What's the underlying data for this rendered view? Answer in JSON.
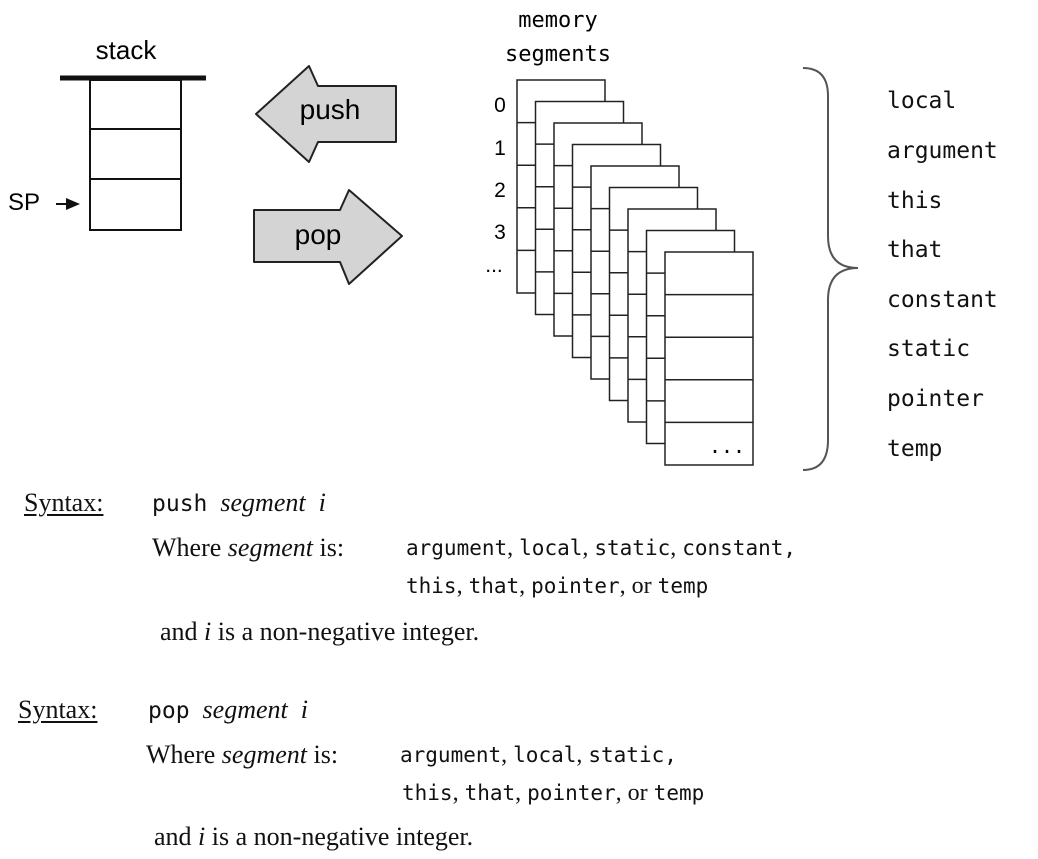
{
  "diagram": {
    "stack_label": "stack",
    "sp_label": "SP",
    "push_label": "push",
    "pop_label": "pop",
    "memory_label_line1": "memory",
    "memory_label_line2": "segments",
    "segment_indices": [
      "0",
      "1",
      "2",
      "3",
      "..."
    ],
    "last_cell_label": "...",
    "segment_names": [
      "local",
      "argument",
      "this",
      "that",
      "constant",
      "static",
      "pointer",
      "temp"
    ]
  },
  "syntax_push": {
    "label": "Syntax:",
    "command": "push",
    "segment_word": "segment",
    "index_word": "i",
    "where_prefix": "Where",
    "where_segment": "segment",
    "where_suffix": "is:",
    "line1_items": [
      "argument",
      "local",
      "static",
      "constant,"
    ],
    "line2_items": [
      "this",
      "that",
      "pointer"
    ],
    "line2_or": "or",
    "line2_last": "temp",
    "and_prefix": "and",
    "and_i": "i",
    "and_suffix": "is a non-negative  integer."
  },
  "syntax_pop": {
    "label": "Syntax:",
    "command": "pop",
    "segment_word": "segment",
    "index_word": "i",
    "where_prefix": "Where",
    "where_segment": "segment",
    "where_suffix": "is:",
    "line1_items": [
      "argument",
      "local",
      "static,"
    ],
    "line2_items": [
      "this",
      "that",
      "pointer"
    ],
    "line2_or": "or",
    "line2_last": "temp",
    "and_prefix": "and",
    "and_i": "i",
    "and_suffix": "is a non-negative  integer."
  }
}
